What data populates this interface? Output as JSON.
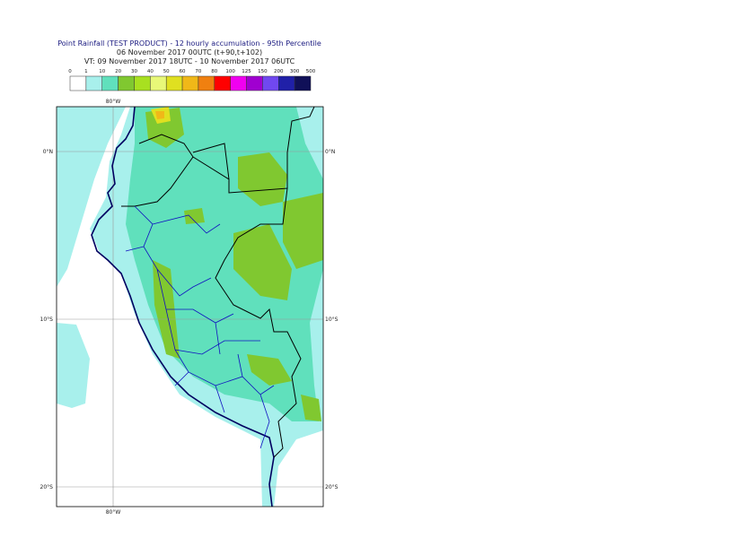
{
  "header": {
    "title": "Point Rainfall (TEST PRODUCT) - 12 hourly accumulation - 95th Percentile",
    "base_time": "06 November 2017 00UTC (t+90,t+102)",
    "valid_time": "VT: 09 November 2017 18UTC - 10 November 2017 06UTC"
  },
  "legend": {
    "labels": [
      0,
      1,
      10,
      20,
      30,
      40,
      50,
      60,
      70,
      80,
      100,
      125,
      150,
      200,
      300,
      500
    ],
    "colors": [
      "#ffffff",
      "#a8f0ec",
      "#60e0bc",
      "#80c830",
      "#a8e020",
      "#e8f878",
      "#e0e020",
      "#f0b818",
      "#f08010",
      "#ff0000",
      "#f000f0",
      "#a000d0",
      "#7048f0",
      "#2020a8",
      "#101058"
    ]
  },
  "map": {
    "lon_label_top": "80°W",
    "lon_label_bottom": "80°W",
    "lat_labels": [
      "0°N",
      "10°S",
      "20°S"
    ]
  }
}
